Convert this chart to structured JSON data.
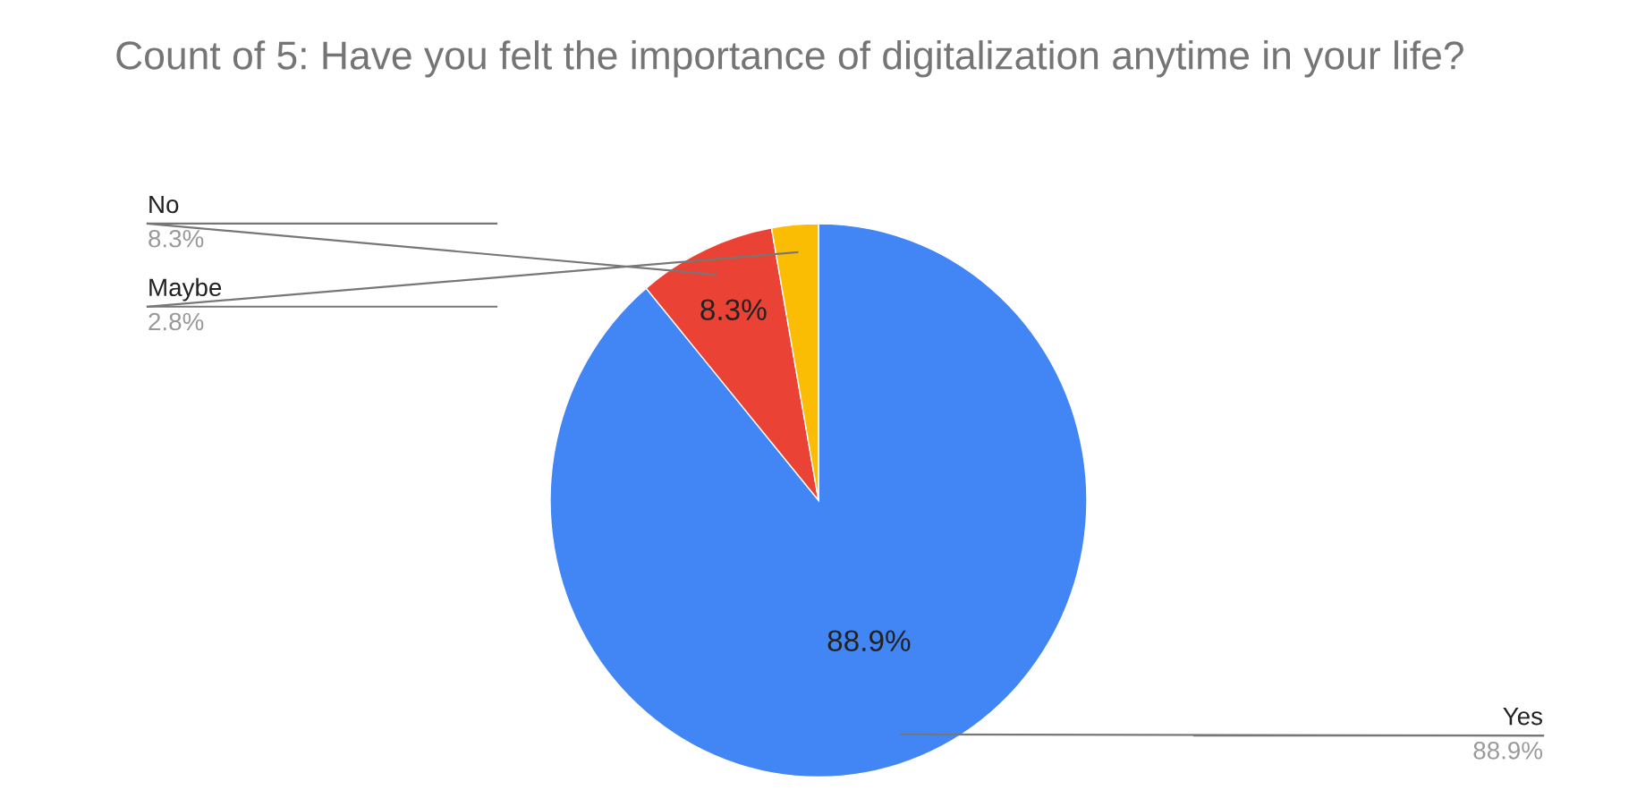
{
  "chart_data": {
    "type": "pie",
    "title": "Count of 5: Have you felt the importance of digitalization anytime in your life?",
    "categories": [
      "Yes",
      "No",
      "Maybe"
    ],
    "values": [
      88.9,
      8.3,
      2.8
    ],
    "colors": [
      "#4285f4",
      "#ea4335",
      "#fbbc04"
    ],
    "value_labels": [
      "88.9%",
      "8.3%",
      "2.8%"
    ],
    "annotations": [
      {
        "text": "88.9%",
        "x": "Yes"
      },
      {
        "text": "8.3%",
        "x": "No"
      }
    ],
    "legend": false
  }
}
